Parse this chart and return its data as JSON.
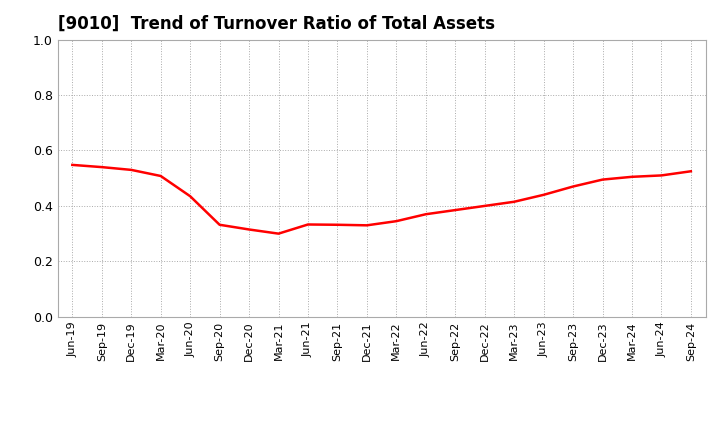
{
  "title": "[9010]  Trend of Turnover Ratio of Total Assets",
  "line_color": "#FF0000",
  "line_width": 1.8,
  "background_color": "#FFFFFF",
  "grid_color": "#AAAAAA",
  "ylim": [
    0.0,
    1.0
  ],
  "yticks": [
    0.0,
    0.2,
    0.4,
    0.6,
    0.8,
    1.0
  ],
  "labels": [
    "Jun-19",
    "Sep-19",
    "Dec-19",
    "Mar-20",
    "Jun-20",
    "Sep-20",
    "Dec-20",
    "Mar-21",
    "Jun-21",
    "Sep-21",
    "Dec-21",
    "Mar-22",
    "Jun-22",
    "Sep-22",
    "Dec-22",
    "Mar-23",
    "Jun-23",
    "Sep-23",
    "Dec-23",
    "Mar-24",
    "Jun-24",
    "Sep-24"
  ],
  "values": [
    0.548,
    0.54,
    0.53,
    0.508,
    0.435,
    0.332,
    0.315,
    0.3,
    0.333,
    0.332,
    0.33,
    0.345,
    0.37,
    0.385,
    0.4,
    0.415,
    0.44,
    0.47,
    0.495,
    0.505,
    0.51,
    0.525
  ],
  "title_fontsize": 12,
  "tick_fontsize": 8,
  "ytick_fontsize": 9
}
